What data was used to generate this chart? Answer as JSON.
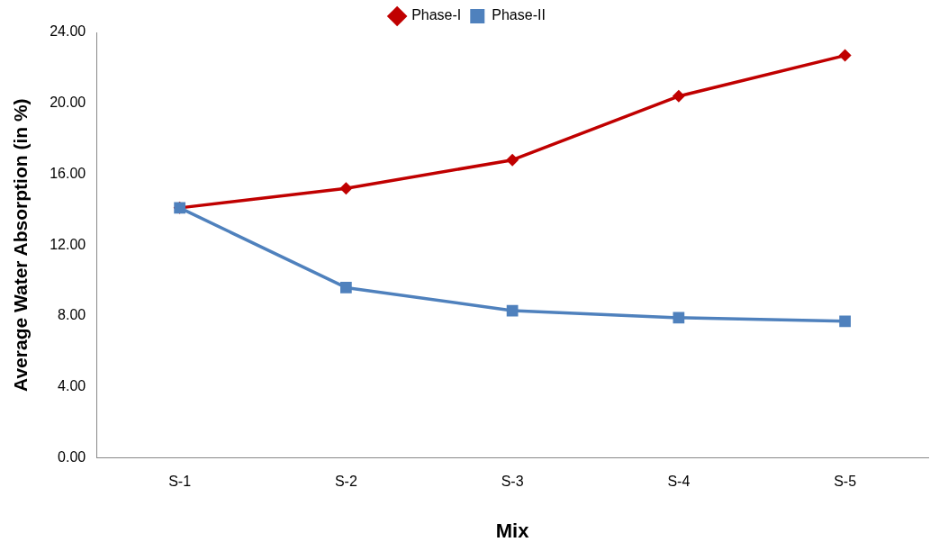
{
  "chart_data": {
    "type": "line",
    "xlabel": "Mix",
    "ylabel": "Average Water Absorption (in %)",
    "categories": [
      "S-1",
      "S-2",
      "S-3",
      "S-4",
      "S-5"
    ],
    "series": [
      {
        "name": "Phase-I",
        "color": "#c00000",
        "marker": "diamond",
        "values": [
          14.1,
          15.2,
          16.8,
          20.4,
          22.7
        ]
      },
      {
        "name": "Phase-II",
        "color": "#4f81bd",
        "marker": "square",
        "values": [
          14.1,
          9.6,
          8.3,
          7.9,
          7.7
        ]
      }
    ],
    "ylim": [
      0,
      24
    ],
    "yticks": [
      {
        "value": 0,
        "label": "0.00"
      },
      {
        "value": 4,
        "label": "4.00"
      },
      {
        "value": 8,
        "label": "8.00"
      },
      {
        "value": 12,
        "label": "12.00"
      },
      {
        "value": 16,
        "label": "16.00"
      },
      {
        "value": 20,
        "label": "20.00"
      },
      {
        "value": 24,
        "label": "24.00"
      }
    ],
    "grid": false,
    "legend": "top",
    "line_style": "solid"
  }
}
